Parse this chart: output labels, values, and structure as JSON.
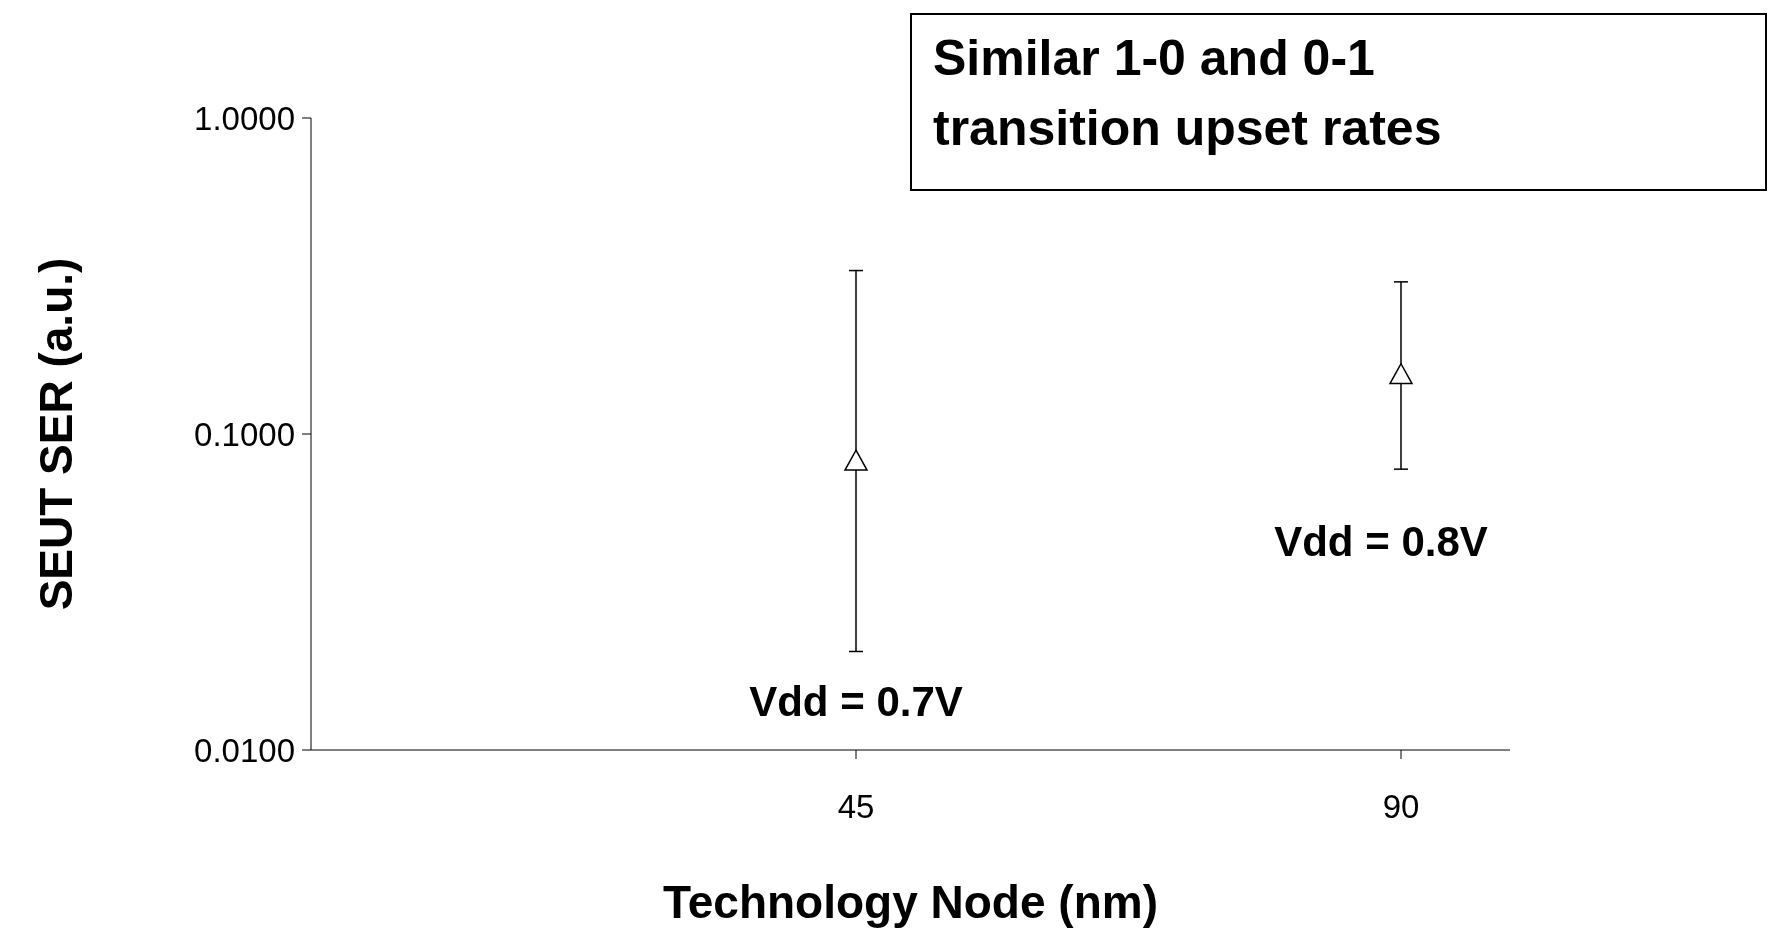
{
  "chart_data": {
    "type": "scatter",
    "xlabel": "Technology Node (nm)",
    "ylabel": "SEUT SER (a.u.)",
    "categories": [
      "45",
      "90"
    ],
    "series": [
      {
        "color": "#000000",
        "values": [
          0.082,
          0.154
        ],
        "errors": [
          [
            0.0205,
            0.329
          ],
          [
            0.0774,
            0.303
          ]
        ]
      }
    ],
    "log": "y",
    "ylim": [
      0.01,
      1
    ],
    "yticks": [
      {
        "value": 0.01,
        "label": "0.0100"
      },
      {
        "value": 0.1,
        "label": "0.1000"
      },
      {
        "value": 1,
        "label": "1.0000"
      }
    ],
    "marker": "triangle",
    "grid": false,
    "annotations": [
      "Vdd = 0.7V",
      "Vdd = 0.8V",
      "Similar 1-0 and 0-1\ntransition upset rates"
    ]
  }
}
